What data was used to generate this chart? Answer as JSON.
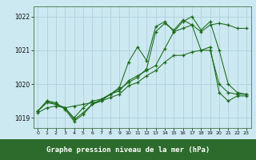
{
  "title": "Graphe pression niveau de la mer (hPa)",
  "x_values": [
    0,
    1,
    2,
    3,
    4,
    5,
    6,
    7,
    8,
    9,
    10,
    11,
    12,
    13,
    14,
    15,
    16,
    17,
    18,
    19,
    20,
    21,
    22,
    23
  ],
  "line_zigzag": [
    1019.2,
    1019.5,
    1019.4,
    1019.3,
    1019.0,
    1019.3,
    1019.5,
    1019.55,
    1019.7,
    1019.8,
    1020.1,
    1020.25,
    1020.4,
    1020.55,
    1021.05,
    1021.55,
    1021.65,
    1021.75,
    1021.0,
    1021.0,
    1020.0,
    1019.75,
    1019.7,
    1019.7
  ],
  "line_spiky": [
    1019.2,
    1019.5,
    1019.45,
    1019.25,
    1018.9,
    1019.1,
    1019.4,
    1019.5,
    1019.7,
    1019.9,
    1020.65,
    1021.1,
    1020.7,
    1021.7,
    1021.85,
    1021.55,
    1021.85,
    1022.0,
    1021.6,
    1021.85,
    1021.0,
    1020.0,
    1019.75,
    1019.7
  ],
  "line_upper": [
    1019.2,
    1019.45,
    1019.4,
    1019.3,
    1018.95,
    1019.15,
    1019.4,
    1019.55,
    1019.7,
    1019.85,
    1020.05,
    1020.2,
    1020.45,
    1021.55,
    1021.8,
    1021.6,
    1021.9,
    1021.75,
    1021.55,
    1021.75,
    1021.8,
    1021.75,
    1021.65,
    1021.65
  ],
  "line_lower": [
    1019.15,
    1019.3,
    1019.35,
    1019.3,
    1019.35,
    1019.4,
    1019.45,
    1019.5,
    1019.6,
    1019.7,
    1019.95,
    1020.05,
    1020.25,
    1020.4,
    1020.65,
    1020.85,
    1020.85,
    1020.95,
    1021.0,
    1021.1,
    1019.75,
    1019.5,
    1019.65,
    1019.65
  ],
  "ylim": [
    1018.7,
    1022.3
  ],
  "yticks": [
    1019,
    1020,
    1021,
    1022
  ],
  "line_color": "#1a6b1a",
  "bg_color": "#cce8f0",
  "grid_color": "#aaccd8",
  "title_bg": "#2d6b2d",
  "title_color": "#ffffff"
}
